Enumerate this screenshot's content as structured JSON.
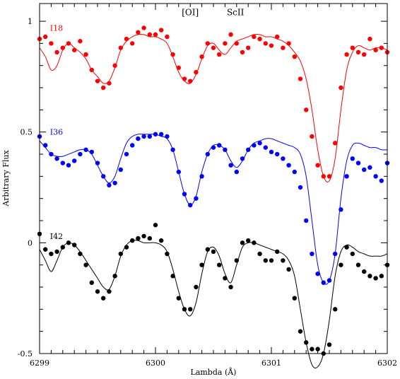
{
  "chart_data": {
    "type": "scatter",
    "xlabel": "Lambda (Å)",
    "ylabel": "Arbitrary Flux",
    "xlim": [
      6299,
      6302
    ],
    "ylim": [
      -0.5,
      1.08
    ],
    "x_ticks": [
      6299,
      6300,
      6301,
      6302
    ],
    "x_tick_labels": [
      "6299",
      "6300",
      "6301",
      "6302"
    ],
    "y_ticks": [
      -0.5,
      0,
      0.5,
      1
    ],
    "y_tick_labels": [
      "-0.5",
      "0",
      "0.5",
      "1"
    ],
    "grid": false,
    "annotations": [
      {
        "text": "[OI]",
        "x": 6300.3,
        "y": 1.04
      },
      {
        "text": "ScII",
        "x": 6300.69,
        "y": 1.04
      }
    ],
    "series": [
      {
        "name": "I18",
        "color": "#ff0000",
        "label_pos": {
          "x": 6299.09,
          "y": 0.97
        },
        "observed": {
          "x": [
            6299.0,
            6299.05,
            6299.1,
            6299.15,
            6299.2,
            6299.25,
            6299.3,
            6299.35,
            6299.4,
            6299.45,
            6299.5,
            6299.55,
            6299.6,
            6299.65,
            6299.7,
            6299.75,
            6299.8,
            6299.85,
            6299.9,
            6299.95,
            6300.0,
            6300.05,
            6300.1,
            6300.15,
            6300.2,
            6300.25,
            6300.3,
            6300.35,
            6300.4,
            6300.45,
            6300.5,
            6300.55,
            6300.6,
            6300.65,
            6300.7,
            6300.75,
            6300.8,
            6300.85,
            6300.9,
            6300.95,
            6301.0,
            6301.05,
            6301.1,
            6301.15,
            6301.2,
            6301.25,
            6301.3,
            6301.35,
            6301.4,
            6301.45,
            6301.5,
            6301.55,
            6301.6,
            6301.65,
            6301.7,
            6301.75,
            6301.8,
            6301.85,
            6301.9,
            6301.95,
            6302.0
          ],
          "y": [
            0.92,
            0.93,
            0.9,
            0.86,
            0.88,
            0.9,
            0.87,
            0.91,
            0.85,
            0.78,
            0.73,
            0.7,
            0.72,
            0.8,
            0.88,
            0.92,
            0.9,
            0.95,
            0.97,
            0.94,
            0.94,
            0.96,
            0.93,
            0.85,
            0.79,
            0.74,
            0.73,
            0.77,
            0.84,
            0.9,
            0.88,
            0.85,
            0.9,
            0.94,
            0.9,
            0.86,
            0.88,
            0.93,
            0.92,
            0.9,
            0.89,
            0.93,
            0.88,
            0.9,
            0.84,
            0.74,
            0.6,
            0.48,
            0.35,
            0.3,
            0.3,
            0.45,
            0.7,
            0.85,
            0.88,
            0.86,
            0.85,
            0.92,
            0.87,
            0.88,
            0.86
          ]
        },
        "model": {
          "x": [
            6299.0,
            6299.05,
            6299.1,
            6299.15,
            6299.2,
            6299.25,
            6299.3,
            6299.35,
            6299.4,
            6299.45,
            6299.5,
            6299.55,
            6299.6,
            6299.65,
            6299.7,
            6299.75,
            6299.8,
            6299.85,
            6299.9,
            6299.95,
            6300.0,
            6300.05,
            6300.1,
            6300.15,
            6300.2,
            6300.25,
            6300.3,
            6300.35,
            6300.4,
            6300.45,
            6300.5,
            6300.55,
            6300.6,
            6300.65,
            6300.7,
            6300.75,
            6300.8,
            6300.85,
            6300.9,
            6300.95,
            6301.0,
            6301.05,
            6301.1,
            6301.15,
            6301.2,
            6301.25,
            6301.3,
            6301.35,
            6301.4,
            6301.45,
            6301.5,
            6301.55,
            6301.6,
            6301.65,
            6301.7,
            6301.75,
            6301.8,
            6301.85,
            6301.9,
            6301.95,
            6302.0
          ],
          "y": [
            0.88,
            0.84,
            0.78,
            0.8,
            0.87,
            0.9,
            0.88,
            0.86,
            0.83,
            0.78,
            0.75,
            0.72,
            0.73,
            0.79,
            0.87,
            0.91,
            0.93,
            0.94,
            0.94,
            0.93,
            0.93,
            0.92,
            0.9,
            0.84,
            0.77,
            0.73,
            0.72,
            0.76,
            0.83,
            0.89,
            0.9,
            0.87,
            0.85,
            0.88,
            0.91,
            0.92,
            0.93,
            0.94,
            0.94,
            0.93,
            0.93,
            0.92,
            0.91,
            0.89,
            0.86,
            0.82,
            0.74,
            0.6,
            0.42,
            0.3,
            0.28,
            0.38,
            0.6,
            0.78,
            0.86,
            0.89,
            0.88,
            0.87,
            0.88,
            0.88,
            0.87
          ]
        }
      },
      {
        "name": "I36",
        "color": "#0000ff",
        "label_pos": {
          "x": 6299.09,
          "y": 0.5
        },
        "observed": {
          "x": [
            6299.0,
            6299.05,
            6299.1,
            6299.15,
            6299.2,
            6299.25,
            6299.3,
            6299.35,
            6299.4,
            6299.45,
            6299.5,
            6299.55,
            6299.6,
            6299.65,
            6299.7,
            6299.75,
            6299.8,
            6299.85,
            6299.9,
            6299.95,
            6300.0,
            6300.05,
            6300.1,
            6300.15,
            6300.2,
            6300.25,
            6300.3,
            6300.35,
            6300.4,
            6300.45,
            6300.5,
            6300.55,
            6300.6,
            6300.65,
            6300.7,
            6300.75,
            6300.8,
            6300.85,
            6300.9,
            6300.95,
            6301.0,
            6301.05,
            6301.1,
            6301.15,
            6301.2,
            6301.25,
            6301.3,
            6301.35,
            6301.4,
            6301.45,
            6301.5,
            6301.55,
            6301.6,
            6301.65,
            6301.7,
            6301.75,
            6301.8,
            6301.85,
            6301.9,
            6301.95,
            6302.0
          ],
          "y": [
            0.48,
            0.44,
            0.4,
            0.38,
            0.36,
            0.35,
            0.37,
            0.4,
            0.42,
            0.41,
            0.36,
            0.3,
            0.26,
            0.27,
            0.33,
            0.4,
            0.44,
            0.47,
            0.48,
            0.48,
            0.49,
            0.49,
            0.48,
            0.42,
            0.32,
            0.22,
            0.17,
            0.2,
            0.3,
            0.4,
            0.43,
            0.44,
            0.42,
            0.35,
            0.32,
            0.38,
            0.42,
            0.44,
            0.45,
            0.43,
            0.41,
            0.4,
            0.38,
            0.35,
            0.32,
            0.25,
            0.1,
            -0.05,
            -0.14,
            -0.18,
            -0.17,
            -0.05,
            0.15,
            0.3,
            0.38,
            0.36,
            0.33,
            0.34,
            0.3,
            0.28,
            0.36
          ]
        },
        "model": {
          "x": [
            6299.0,
            6299.05,
            6299.1,
            6299.15,
            6299.2,
            6299.25,
            6299.3,
            6299.35,
            6299.4,
            6299.45,
            6299.5,
            6299.55,
            6299.6,
            6299.65,
            6299.7,
            6299.75,
            6299.8,
            6299.85,
            6299.9,
            6299.95,
            6300.0,
            6300.05,
            6300.1,
            6300.15,
            6300.2,
            6300.25,
            6300.3,
            6300.35,
            6300.4,
            6300.45,
            6300.5,
            6300.55,
            6300.6,
            6300.65,
            6300.7,
            6300.75,
            6300.8,
            6300.85,
            6300.9,
            6300.95,
            6301.0,
            6301.05,
            6301.1,
            6301.15,
            6301.2,
            6301.25,
            6301.3,
            6301.35,
            6301.4,
            6301.45,
            6301.5,
            6301.55,
            6301.6,
            6301.65,
            6301.7,
            6301.75,
            6301.8,
            6301.85,
            6301.9,
            6301.95,
            6302.0
          ],
          "y": [
            0.46,
            0.43,
            0.4,
            0.39,
            0.39,
            0.4,
            0.41,
            0.42,
            0.42,
            0.4,
            0.35,
            0.3,
            0.27,
            0.3,
            0.38,
            0.45,
            0.48,
            0.49,
            0.49,
            0.49,
            0.49,
            0.48,
            0.47,
            0.42,
            0.32,
            0.22,
            0.17,
            0.21,
            0.32,
            0.4,
            0.44,
            0.44,
            0.42,
            0.37,
            0.34,
            0.37,
            0.42,
            0.45,
            0.46,
            0.47,
            0.47,
            0.46,
            0.45,
            0.44,
            0.43,
            0.4,
            0.3,
            0.1,
            -0.1,
            -0.18,
            -0.17,
            -0.05,
            0.2,
            0.37,
            0.44,
            0.45,
            0.44,
            0.43,
            0.43,
            0.42,
            0.42
          ]
        }
      },
      {
        "name": "I42",
        "color": "#000000",
        "label_pos": {
          "x": 6299.09,
          "y": 0.03
        },
        "observed": {
          "x": [
            6299.0,
            6299.05,
            6299.1,
            6299.15,
            6299.2,
            6299.25,
            6299.3,
            6299.35,
            6299.4,
            6299.45,
            6299.5,
            6299.55,
            6299.6,
            6299.65,
            6299.7,
            6299.75,
            6299.8,
            6299.85,
            6299.9,
            6299.95,
            6300.0,
            6300.05,
            6300.1,
            6300.15,
            6300.2,
            6300.25,
            6300.3,
            6300.35,
            6300.4,
            6300.45,
            6300.5,
            6300.55,
            6300.6,
            6300.65,
            6300.7,
            6300.75,
            6300.8,
            6300.85,
            6300.9,
            6300.95,
            6301.0,
            6301.05,
            6301.1,
            6301.15,
            6301.2,
            6301.25,
            6301.3,
            6301.35,
            6301.4,
            6301.45,
            6301.5,
            6301.55,
            6301.6,
            6301.65,
            6301.7,
            6301.75,
            6301.8,
            6301.85,
            6301.9,
            6301.95,
            6302.0
          ],
          "y": [
            0.04,
            -0.03,
            -0.05,
            -0.04,
            -0.02,
            0.0,
            -0.01,
            -0.05,
            -0.1,
            -0.18,
            -0.22,
            -0.25,
            -0.22,
            -0.15,
            -0.05,
            -0.02,
            0.01,
            0.02,
            0.03,
            0.02,
            0.08,
            0.01,
            -0.05,
            -0.15,
            -0.25,
            -0.3,
            -0.3,
            -0.2,
            -0.1,
            -0.03,
            -0.04,
            -0.1,
            -0.16,
            -0.2,
            -0.08,
            0.0,
            0.01,
            0.0,
            -0.05,
            -0.08,
            -0.08,
            -0.04,
            -0.08,
            -0.12,
            -0.25,
            -0.4,
            -0.45,
            -0.48,
            -0.48,
            -0.5,
            -0.46,
            -0.3,
            -0.1,
            -0.02,
            -0.05,
            -0.1,
            -0.13,
            -0.15,
            -0.16,
            -0.15,
            -0.1
          ]
        },
        "model": {
          "x": [
            6299.0,
            6299.05,
            6299.1,
            6299.15,
            6299.2,
            6299.25,
            6299.3,
            6299.35,
            6299.4,
            6299.45,
            6299.5,
            6299.55,
            6299.6,
            6299.65,
            6299.7,
            6299.75,
            6299.8,
            6299.85,
            6299.9,
            6299.95,
            6300.0,
            6300.05,
            6300.1,
            6300.15,
            6300.2,
            6300.25,
            6300.3,
            6300.35,
            6300.4,
            6300.45,
            6300.5,
            6300.55,
            6300.6,
            6300.65,
            6300.7,
            6300.75,
            6300.8,
            6300.85,
            6300.9,
            6300.95,
            6301.0,
            6301.05,
            6301.1,
            6301.15,
            6301.2,
            6301.25,
            6301.3,
            6301.35,
            6301.4,
            6301.45,
            6301.5,
            6301.55,
            6301.6,
            6301.65,
            6301.7,
            6301.75,
            6301.8,
            6301.85,
            6301.9,
            6301.95,
            6302.0
          ],
          "y": [
            -0.03,
            -0.08,
            -0.13,
            -0.08,
            -0.02,
            0.0,
            -0.01,
            -0.04,
            -0.08,
            -0.12,
            -0.16,
            -0.2,
            -0.21,
            -0.15,
            -0.06,
            -0.01,
            0.01,
            0.01,
            0.0,
            0.0,
            0.0,
            -0.01,
            -0.04,
            -0.12,
            -0.22,
            -0.3,
            -0.33,
            -0.27,
            -0.14,
            -0.04,
            -0.02,
            -0.06,
            -0.14,
            -0.18,
            -0.1,
            -0.02,
            0.0,
            0.0,
            -0.01,
            -0.02,
            -0.03,
            -0.04,
            -0.05,
            -0.08,
            -0.15,
            -0.3,
            -0.45,
            -0.55,
            -0.56,
            -0.5,
            -0.35,
            -0.15,
            -0.04,
            -0.01,
            -0.02,
            -0.04,
            -0.05,
            -0.06,
            -0.06,
            -0.06,
            -0.05
          ]
        }
      }
    ]
  }
}
